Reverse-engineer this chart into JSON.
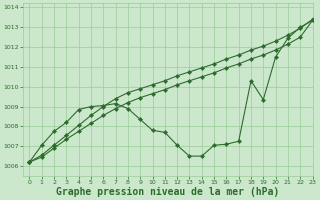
{
  "background_color": "#cce8cc",
  "grid_color": "#99cc99",
  "line_color": "#2d6b2d",
  "xlabel": "Graphe pression niveau de la mer (hPa)",
  "xlabel_fontsize": 7,
  "ylim": [
    1005.5,
    1014.2
  ],
  "xlim": [
    -0.5,
    23
  ],
  "yticks": [
    1006,
    1007,
    1008,
    1009,
    1010,
    1011,
    1012,
    1013,
    1014
  ],
  "xticks": [
    0,
    1,
    2,
    3,
    4,
    5,
    6,
    7,
    8,
    9,
    10,
    11,
    12,
    13,
    14,
    15,
    16,
    17,
    18,
    19,
    20,
    21,
    22,
    23
  ],
  "line1_x": [
    0,
    1,
    2,
    3,
    4,
    5,
    6,
    7,
    8,
    9,
    10,
    11,
    12,
    13,
    14,
    15,
    16,
    17,
    18,
    19,
    20,
    21,
    22,
    23
  ],
  "line1_y": [
    1006.2,
    1006.55,
    1007.05,
    1007.55,
    1008.05,
    1008.55,
    1009.0,
    1009.4,
    1009.7,
    1009.9,
    1010.1,
    1010.3,
    1010.55,
    1010.75,
    1010.95,
    1011.15,
    1011.4,
    1011.6,
    1011.85,
    1012.05,
    1012.3,
    1012.6,
    1012.95,
    1013.4
  ],
  "line2_x": [
    0,
    1,
    2,
    3,
    4,
    5,
    6,
    7,
    8,
    9,
    10,
    11,
    12,
    13,
    14,
    15,
    16,
    17,
    18,
    19,
    20,
    21,
    22,
    23
  ],
  "line2_y": [
    1006.2,
    1006.45,
    1006.9,
    1007.35,
    1007.75,
    1008.15,
    1008.55,
    1008.9,
    1009.2,
    1009.45,
    1009.65,
    1009.85,
    1010.1,
    1010.3,
    1010.5,
    1010.7,
    1010.95,
    1011.15,
    1011.4,
    1011.6,
    1011.85,
    1012.15,
    1012.5,
    1013.35
  ],
  "line3_x": [
    0,
    1,
    2,
    3,
    4,
    5,
    6,
    7,
    8,
    9,
    10,
    11,
    12,
    13,
    14,
    15,
    16,
    17,
    18,
    19,
    20,
    21,
    22,
    23
  ],
  "line3_y": [
    1006.2,
    1007.05,
    1007.75,
    1008.2,
    1008.85,
    1009.0,
    1009.05,
    1009.15,
    1008.9,
    1008.35,
    1007.8,
    1007.7,
    1007.05,
    1006.5,
    1006.5,
    1007.05,
    1007.1,
    1007.25,
    1010.3,
    1009.35,
    1011.5,
    1012.45,
    1013.0,
    1013.35
  ]
}
